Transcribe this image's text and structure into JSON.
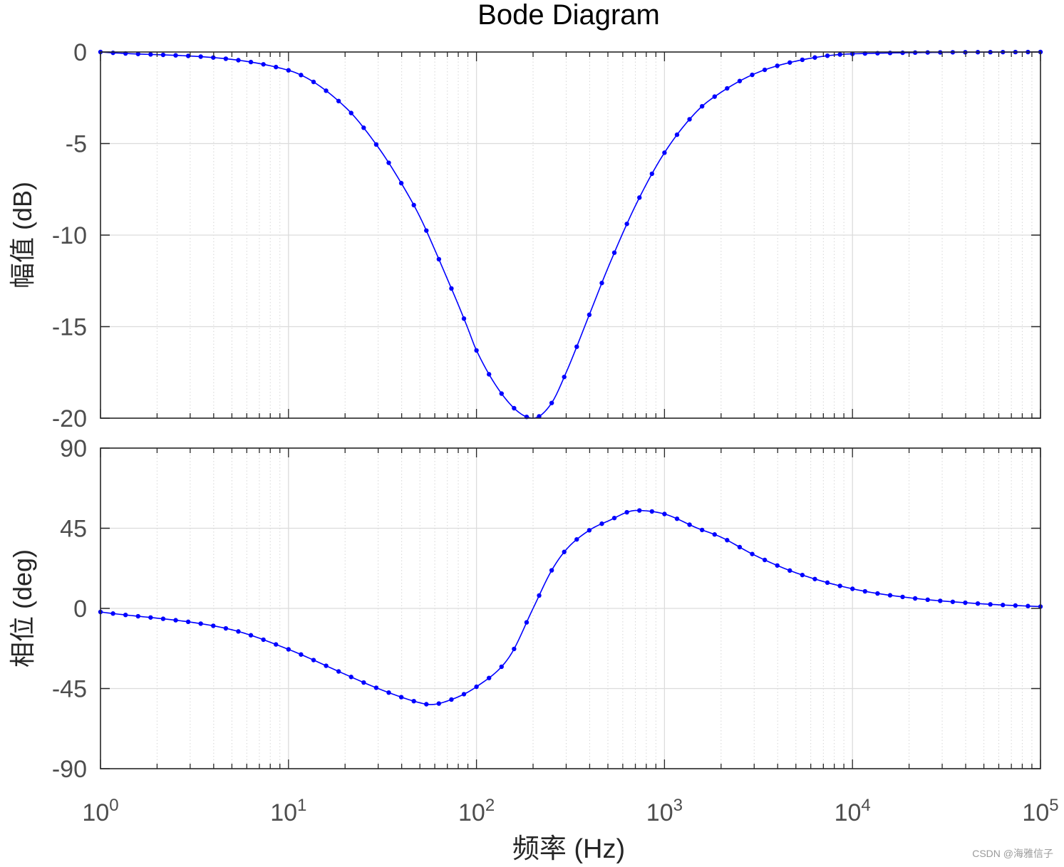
{
  "chart_data": {
    "type": "line",
    "title": "Bode Diagram",
    "xlabel": "频率 (Hz)",
    "x_scale": "log",
    "xlim": [
      1,
      100000
    ],
    "x_ticks": [
      {
        "base": "10",
        "exp": "0"
      },
      {
        "base": "10",
        "exp": "1"
      },
      {
        "base": "10",
        "exp": "2"
      },
      {
        "base": "10",
        "exp": "3"
      },
      {
        "base": "10",
        "exp": "4"
      },
      {
        "base": "10",
        "exp": "5"
      }
    ],
    "grid": true,
    "color": "#0000ff",
    "marker": "dot",
    "subplots": [
      {
        "name": "magnitude",
        "ylabel": "幅值 (dB)",
        "ylim": [
          -20,
          0
        ],
        "y_ticks": [
          "0",
          "-5",
          "-10",
          "-15",
          "-20"
        ],
        "y_tick_values": [
          0,
          -5,
          -10,
          -15,
          -20
        ],
        "series": [
          {
            "x": [
              1,
              10,
              20,
              30,
              40,
              50,
              60,
              70,
              80,
              90,
              100,
              150,
              200,
              250,
              300,
              400,
              500,
              700,
              1000,
              1500,
              2000,
              3000,
              5000,
              10000,
              100000
            ],
            "y": [
              0,
              -1.0,
              -3.0,
              -5.2,
              -7.2,
              -9.0,
              -10.8,
              -12.4,
              -13.8,
              -15.1,
              -16.3,
              -19.2,
              -20.0,
              -19.2,
              -17.5,
              -14.3,
              -11.8,
              -8.4,
              -5.5,
              -3.2,
              -2.2,
              -1.2,
              -0.5,
              -0.1,
              0
            ]
          }
        ]
      },
      {
        "name": "phase",
        "ylabel": "相位 (deg)",
        "ylim": [
          -90,
          90
        ],
        "y_ticks": [
          "90",
          "45",
          "0",
          "-45",
          "-90"
        ],
        "y_tick_values": [
          90,
          45,
          0,
          -45,
          -90
        ],
        "series": [
          {
            "x": [
              1,
              5,
              10,
              20,
              30,
              50,
              57,
              70,
              100,
              150,
              200,
              250,
              300,
              400,
              500,
              707,
              1000,
              1500,
              2000,
              3000,
              5000,
              10000,
              20000,
              50000,
              100000
            ],
            "y": [
              -2,
              -12,
              -23,
              -37,
              -45,
              -53,
              -54,
              -52,
              -44,
              -27,
              0,
              21,
              33,
              44,
              49,
              55,
              53,
              45,
              40,
              30,
              20,
              11,
              6,
              2.5,
              1
            ]
          }
        ]
      }
    ]
  },
  "watermark": "CSDN @海雅信子"
}
